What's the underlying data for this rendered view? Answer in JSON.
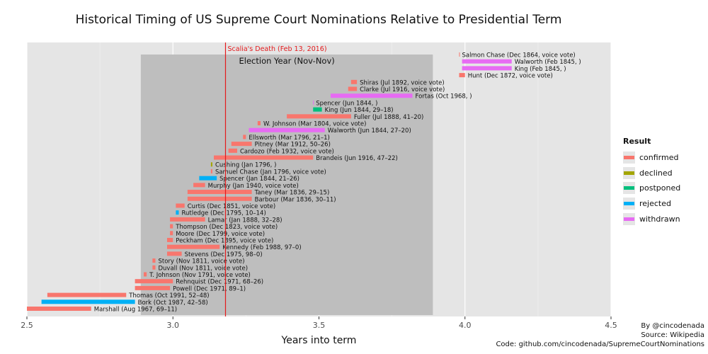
{
  "title": "Historical Timing of US Supreme Court Nominations Relative to Presidential Term",
  "credits": {
    "author": "By @cincodenada",
    "source": "Source: Wikipedia",
    "code": "Code: github.com/cincodenada/SupremeCourtNominations"
  },
  "legend": {
    "title": "Result",
    "items": [
      {
        "label": "confirmed",
        "color": "#f8766d"
      },
      {
        "label": "declined",
        "color": "#a3a500"
      },
      {
        "label": "postponed",
        "color": "#00bf7d"
      },
      {
        "label": "rejected",
        "color": "#00b0f6"
      },
      {
        "label": "withdrawn",
        "color": "#e76bf3"
      }
    ]
  },
  "chart_data": {
    "type": "bar",
    "orientation": "horizontal",
    "xlabel": "Years into term",
    "xlim": [
      2.5,
      4.5
    ],
    "xticks": [
      "2.5",
      "3.0",
      "3.5",
      "4.0",
      "4.5"
    ],
    "grid": true,
    "legend_position": "right",
    "shaded_region": {
      "label": "Election Year (Nov-Nov)",
      "x": [
        2.89,
        3.89
      ]
    },
    "vline": {
      "label": "Scalia's Death (Feb 13, 2016)",
      "x": 3.18
    },
    "bars": [
      {
        "label": "Salmon Chase (Dec 1864, voice vote)",
        "start": 3.98,
        "end": 3.98,
        "result": "confirmed"
      },
      {
        "label": "Walworth (Feb 1845, )",
        "start": 3.99,
        "end": 4.16,
        "result": "withdrawn"
      },
      {
        "label": "King (Feb 1845, )",
        "start": 3.99,
        "end": 4.16,
        "result": "withdrawn"
      },
      {
        "label": "Hunt (Dec 1872, voice vote)",
        "start": 3.98,
        "end": 4.0,
        "result": "confirmed"
      },
      {
        "label": "Shiras (Jul 1892, voice vote)",
        "start": 3.61,
        "end": 3.63,
        "result": "confirmed"
      },
      {
        "label": "Clarke (Jul 1916, voice vote)",
        "start": 3.6,
        "end": 3.63,
        "result": "confirmed"
      },
      {
        "label": "Fortas (Oct 1968, )",
        "start": 3.54,
        "end": 3.82,
        "result": "withdrawn"
      },
      {
        "label": "Spencer (Jun 1844, )",
        "start": 3.48,
        "end": 3.48,
        "result": "withdrawn"
      },
      {
        "label": "King (Jun 1844, 29–18)",
        "start": 3.48,
        "end": 3.51,
        "result": "postponed"
      },
      {
        "label": "Fuller (Jul 1888, 41–20)",
        "start": 3.39,
        "end": 3.61,
        "result": "confirmed"
      },
      {
        "label": "W. Johnson (Mar 1804, voice vote)",
        "start": 3.29,
        "end": 3.3,
        "result": "confirmed"
      },
      {
        "label": "Walworth (Jun 1844, 27–20)",
        "start": 3.26,
        "end": 3.52,
        "result": "withdrawn"
      },
      {
        "label": "Ellsworth (Mar 1796, 21–1)",
        "start": 3.24,
        "end": 3.25,
        "result": "confirmed"
      },
      {
        "label": "Pitney (Mar 1912, 50–26)",
        "start": 3.2,
        "end": 3.27,
        "result": "confirmed"
      },
      {
        "label": "Cardozo (Feb 1932, voice vote)",
        "start": 3.19,
        "end": 3.22,
        "result": "confirmed"
      },
      {
        "label": "Brandeis (Jun 1916, 47–22)",
        "start": 3.14,
        "end": 3.48,
        "result": "confirmed"
      },
      {
        "label": "Cushing (Jan 1796, )",
        "start": 3.13,
        "end": 3.135,
        "result": "declined"
      },
      {
        "label": "Samuel Chase (Jan 1796, voice vote)",
        "start": 3.13,
        "end": 3.135,
        "result": "confirmed"
      },
      {
        "label": "Spencer (Jan 1844, 21–26)",
        "start": 3.09,
        "end": 3.15,
        "result": "rejected"
      },
      {
        "label": "Murphy (Jan 1940, voice vote)",
        "start": 3.07,
        "end": 3.11,
        "result": "confirmed"
      },
      {
        "label": "Taney (Mar 1836, 29–15)",
        "start": 3.05,
        "end": 3.27,
        "result": "confirmed"
      },
      {
        "label": "Barbour (Mar 1836, 30–11)",
        "start": 3.05,
        "end": 3.27,
        "result": "confirmed"
      },
      {
        "label": "Curtis (Dec 1851, voice vote)",
        "start": 3.01,
        "end": 3.04,
        "result": "confirmed"
      },
      {
        "label": "Rutledge (Dec 1795, 10–14)",
        "start": 3.01,
        "end": 3.02,
        "result": "rejected"
      },
      {
        "label": "Lamar (Jan 1888, 32–28)",
        "start": 2.99,
        "end": 3.11,
        "result": "confirmed"
      },
      {
        "label": "Thompson (Dec 1823, voice vote)",
        "start": 2.99,
        "end": 3.0,
        "result": "confirmed"
      },
      {
        "label": "Moore (Dec 1799, voice vote)",
        "start": 2.99,
        "end": 3.0,
        "result": "confirmed"
      },
      {
        "label": "Peckham (Dec 1895, voice vote)",
        "start": 2.98,
        "end": 3.0,
        "result": "confirmed"
      },
      {
        "label": "Kennedy (Feb 1988, 97–0)",
        "start": 2.98,
        "end": 3.16,
        "result": "confirmed"
      },
      {
        "label": "Stevens (Dec 1975, 98–0)",
        "start": 2.98,
        "end": 3.03,
        "result": "confirmed"
      },
      {
        "label": "Story (Nov 1811, voice vote)",
        "start": 2.93,
        "end": 2.94,
        "result": "confirmed"
      },
      {
        "label": "Duvall (Nov 1811, voice vote)",
        "start": 2.93,
        "end": 2.94,
        "result": "confirmed"
      },
      {
        "label": "T. Johnson (Nov 1791, voice vote)",
        "start": 2.9,
        "end": 2.91,
        "result": "confirmed"
      },
      {
        "label": "Rehnquist (Dec 1971, 68–26)",
        "start": 2.87,
        "end": 3.0,
        "result": "confirmed"
      },
      {
        "label": "Powell (Dec 1971, 89–1)",
        "start": 2.87,
        "end": 2.99,
        "result": "confirmed"
      },
      {
        "label": "Thomas (Oct 1991, 52–48)",
        "start": 2.57,
        "end": 2.84,
        "result": "confirmed"
      },
      {
        "label": "Bork (Oct 1987, 42–58)",
        "start": 2.55,
        "end": 2.87,
        "result": "rejected"
      },
      {
        "label": "Marshall (Aug 1967, 69–11)",
        "start": 2.5,
        "end": 2.72,
        "result": "confirmed"
      }
    ]
  }
}
